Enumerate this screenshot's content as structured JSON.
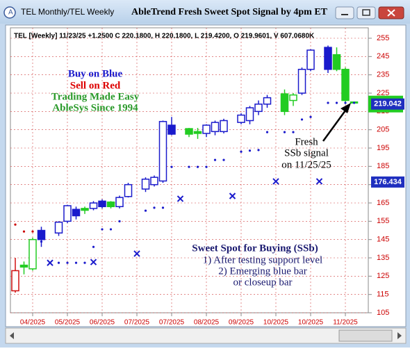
{
  "window": {
    "tab": "TEL Monthly/TEL Weekly"
  },
  "chart_data": {
    "type": "candlestick",
    "title": "AbleTrend Fresh Sweet Spot Signal by 4pm ET",
    "header": "TEL [Weekly] 11/23/25 +1.2500 C 220.1800, H 220.1800, L 219.4200, O 219.9601, V 607.0680K",
    "xlim": [
      -0.56,
      40.64
    ],
    "ylim": [
      105,
      260.7
    ],
    "yticks": [
      105,
      115,
      125,
      135,
      145,
      155,
      165,
      175,
      185,
      195,
      205,
      215,
      225,
      235,
      245,
      255
    ],
    "xticks": [
      {
        "value": 2,
        "label": "04/2025"
      },
      {
        "value": 6,
        "label": "05/2025"
      },
      {
        "value": 10,
        "label": "06/2025"
      },
      {
        "value": 14,
        "label": "07/2025"
      },
      {
        "value": 18,
        "label": "07/2025"
      },
      {
        "value": 22,
        "label": "08/2025"
      },
      {
        "value": 26,
        "label": "09/2025"
      },
      {
        "value": 30,
        "label": "10/2025"
      },
      {
        "value": 34,
        "label": "10/2025"
      },
      {
        "value": 38,
        "label": "11/2025"
      }
    ],
    "grid": true,
    "grid_color": "#d04040",
    "axis_label_color": "#cc0000",
    "candles": [
      {
        "x": 0,
        "open": 117,
        "high": 135,
        "low": 116,
        "close": 128,
        "color": "#d01010",
        "hollow": true
      },
      {
        "x": 1,
        "open": 130,
        "high": 133,
        "low": 126,
        "close": 131,
        "color": "#22cc22",
        "hollow": false
      },
      {
        "x": 2,
        "open": 129,
        "high": 146,
        "low": 128,
        "close": 145,
        "color": "#22cc22",
        "hollow": true
      },
      {
        "x": 3,
        "open": 145,
        "high": 152,
        "low": 141,
        "close": 150,
        "color": "#1a1acc",
        "hollow": false
      },
      {
        "x": 5,
        "open": 148.6,
        "high": 155,
        "low": 147,
        "close": 154.5,
        "color": "#1a1acc",
        "hollow": true
      },
      {
        "x": 6,
        "open": 155,
        "high": 164,
        "low": 154,
        "close": 163.5,
        "color": "#1a1acc",
        "hollow": true
      },
      {
        "x": 7,
        "open": 158,
        "high": 163,
        "low": 156,
        "close": 161.5,
        "color": "#1a1acc",
        "hollow": false
      },
      {
        "x": 8,
        "open": 161,
        "high": 163,
        "low": 159,
        "close": 162,
        "color": "#22cc22",
        "hollow": false
      },
      {
        "x": 9,
        "open": 162,
        "high": 166,
        "low": 161,
        "close": 165,
        "color": "#1a1acc",
        "hollow": true
      },
      {
        "x": 10,
        "open": 163,
        "high": 167,
        "low": 162,
        "close": 166,
        "color": "#1a1acc",
        "hollow": false
      },
      {
        "x": 11,
        "open": 163,
        "high": 166,
        "low": 162,
        "close": 165.5,
        "color": "#22cc22",
        "hollow": false
      },
      {
        "x": 12,
        "open": 163,
        "high": 169,
        "low": 162,
        "close": 168,
        "color": "#1a1acc",
        "hollow": true
      },
      {
        "x": 13,
        "open": 168.5,
        "high": 176,
        "low": 168,
        "close": 175,
        "color": "#1a1acc",
        "hollow": true
      },
      {
        "x": 15,
        "open": 172.6,
        "high": 179,
        "low": 171,
        "close": 178,
        "color": "#1a1acc",
        "hollow": true
      },
      {
        "x": 16,
        "open": 175,
        "high": 180,
        "low": 174,
        "close": 179,
        "color": "#1a1acc",
        "hollow": true
      },
      {
        "x": 17,
        "open": 177,
        "high": 210,
        "low": 176,
        "close": 209.5,
        "color": "#1a1acc",
        "hollow": true
      },
      {
        "x": 18,
        "open": 202.6,
        "high": 212,
        "low": 202,
        "close": 207.5,
        "color": "#1a1acc",
        "hollow": false
      },
      {
        "x": 20,
        "open": 202.6,
        "high": 206,
        "low": 201,
        "close": 205.6,
        "color": "#22cc22",
        "hollow": false
      },
      {
        "x": 21,
        "open": 203,
        "high": 206,
        "low": 200,
        "close": 204,
        "color": "#22cc22",
        "hollow": false
      },
      {
        "x": 22,
        "open": 203,
        "high": 208,
        "low": 201,
        "close": 207.5,
        "color": "#1a1acc",
        "hollow": true
      },
      {
        "x": 23,
        "open": 204,
        "high": 210,
        "low": 202,
        "close": 209,
        "color": "#1a1acc",
        "hollow": true
      },
      {
        "x": 24,
        "open": 204,
        "high": 211,
        "low": 203,
        "close": 210,
        "color": "#1a1acc",
        "hollow": true
      },
      {
        "x": 26,
        "open": 209,
        "high": 214,
        "low": 208,
        "close": 213,
        "color": "#1a1acc",
        "hollow": true
      },
      {
        "x": 27,
        "open": 210,
        "high": 218,
        "low": 208,
        "close": 217,
        "color": "#1a1acc",
        "hollow": true
      },
      {
        "x": 28,
        "open": 215,
        "high": 221,
        "low": 213,
        "close": 219,
        "color": "#1a1acc",
        "hollow": true
      },
      {
        "x": 29,
        "open": 219,
        "high": 224,
        "low": 217,
        "close": 222.5,
        "color": "#1a1acc",
        "hollow": true
      },
      {
        "x": 31,
        "open": 224.6,
        "high": 227,
        "low": 213,
        "close": 215,
        "color": "#22cc22",
        "hollow": false
      },
      {
        "x": 32,
        "open": 221,
        "high": 225,
        "low": 218,
        "close": 224,
        "color": "#22cc22",
        "hollow": true
      },
      {
        "x": 33,
        "open": 225,
        "high": 239,
        "low": 224,
        "close": 238,
        "color": "#1a1acc",
        "hollow": true
      },
      {
        "x": 34,
        "open": 238,
        "high": 249,
        "low": 237,
        "close": 248.5,
        "color": "#1a1acc",
        "hollow": true
      },
      {
        "x": 36,
        "open": 238,
        "high": 251,
        "low": 236,
        "close": 250,
        "color": "#1a1acc",
        "hollow": false
      },
      {
        "x": 37,
        "open": 246,
        "high": 250,
        "low": 237,
        "close": 238,
        "color": "#22cc22",
        "hollow": false
      },
      {
        "x": 38,
        "open": 238,
        "high": 239,
        "low": 219,
        "close": 221,
        "color": "#22cc22",
        "hollow": false
      },
      {
        "x": 39,
        "open": 219.9601,
        "high": 220.18,
        "low": 219.42,
        "close": 220.18,
        "color": "#22cc22",
        "hollow": false
      }
    ],
    "series": [
      {
        "marker": "dot",
        "color": "#cc0000",
        "x": [
          0,
          1,
          2
        ],
        "values": [
          153.2,
          149.4,
          149.4
        ]
      },
      {
        "marker": "dot",
        "color": "#1a1acc",
        "x": [
          3,
          5,
          6,
          7,
          8,
          9,
          10,
          11,
          12,
          15,
          16,
          17,
          18,
          20,
          21,
          22,
          23,
          24,
          26,
          27,
          28,
          29,
          31,
          32,
          33,
          34,
          36,
          37,
          38,
          39
        ],
        "values": [
          143.9,
          132.3,
          132.3,
          132.3,
          132.3,
          141,
          150.6,
          150.6,
          155,
          160.8,
          162.4,
          162.4,
          184.7,
          184.7,
          184.7,
          184.7,
          188.5,
          188.5,
          193,
          193.6,
          193.9,
          203.7,
          203.7,
          203.7,
          210.6,
          212,
          219.7,
          219.7,
          219.7,
          219.7
        ]
      },
      {
        "marker": "x",
        "color": "#1a1acc",
        "x": [
          4,
          9,
          14,
          19,
          25,
          30,
          35
        ],
        "values": [
          132.3,
          132.7,
          137.3,
          167.3,
          168.8,
          176.8,
          176.8
        ]
      }
    ],
    "price_markers": [
      {
        "value": 219.042,
        "color": "#1f2fbf",
        "band": "#22cc22"
      },
      {
        "value": 176.434,
        "color": "#1f2fbf"
      }
    ],
    "annotations": [
      {
        "text": "Buy on Blue",
        "color": "#1a1acc"
      },
      {
        "text": "Sell on Red",
        "color": "#dd0000"
      },
      {
        "text": "Trading Made Easy",
        "color": "#2a9a2a"
      },
      {
        "text": "AbleSys Since 1994",
        "color": "#2a9a2a"
      },
      {
        "text": "Fresh",
        "color": "#000000"
      },
      {
        "text": "SSb signal",
        "color": "#000000"
      },
      {
        "text": "on 11/25/25",
        "color": "#000000"
      },
      {
        "text": "Sweet Spot for Buying (SSb)",
        "color": "#1a1a70"
      },
      {
        "text": "1) After testing support level",
        "color": "#1a1a70"
      },
      {
        "text": "2) Emerging blue bar",
        "color": "#1a1a70"
      },
      {
        "text": "or closeup bar",
        "color": "#1a1a70"
      }
    ]
  }
}
